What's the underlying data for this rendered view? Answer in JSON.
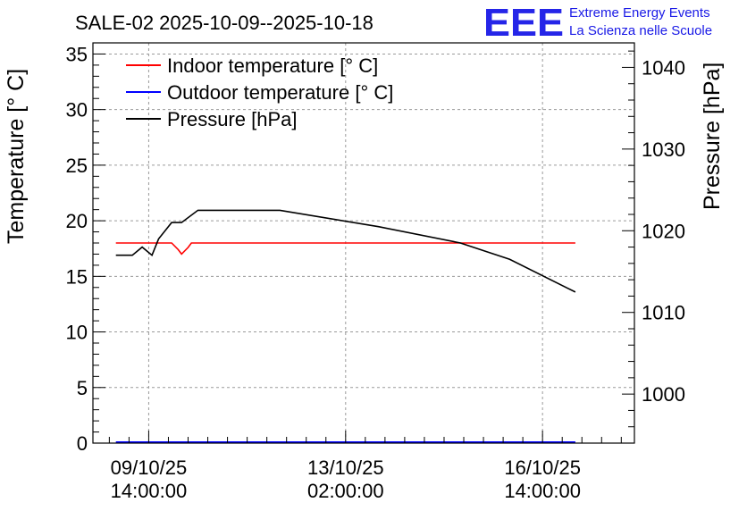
{
  "title": "SALE-02 2025-10-09--2025-10-18",
  "logo": {
    "letters": "EEE",
    "line1": "Extreme Energy Events",
    "line2": "La Scienza nelle Scuole",
    "color": "#1a1ae6"
  },
  "chart_data": {
    "type": "line",
    "title": "SALE-02 2025-10-09--2025-10-18",
    "xlabel": "",
    "ylabel": "Temperature [° C]",
    "y2label": "Pressure [hPa]",
    "ylim": [
      0,
      36
    ],
    "y2lim": [
      994,
      1043
    ],
    "xlim_hours": [
      -17,
      148
    ],
    "x_unit": "hours since 09/10/25 14:00:00",
    "y_ticks": [
      "0",
      "5",
      "10",
      "15",
      "20",
      "25",
      "30",
      "35"
    ],
    "y2_ticks": [
      "1000",
      "1010",
      "1020",
      "1030",
      "1040"
    ],
    "x_ticks": [
      {
        "hours": 0,
        "date": "09/10/25",
        "time": "14:00:00"
      },
      {
        "hours": 60,
        "date": "13/10/25",
        "time": "02:00:00"
      },
      {
        "hours": 120,
        "date": "16/10/25",
        "time": "14:00:00"
      }
    ],
    "grid": true,
    "legend_position": "top-left",
    "series": [
      {
        "name": "Indoor temperature [° C]",
        "color": "#ff0000",
        "axis": "left",
        "x": [
          -10,
          7,
          9,
          10,
          12,
          13,
          130
        ],
        "y": [
          18.0,
          18.0,
          17.4,
          17.0,
          17.6,
          18.0,
          18.0
        ]
      },
      {
        "name": "Outdoor temperature [° C]",
        "color": "#0000ff",
        "axis": "left",
        "x": [
          -10,
          130
        ],
        "y": [
          0.1,
          0.1
        ]
      },
      {
        "name": "Pressure [hPa]",
        "color": "#000000",
        "axis": "right",
        "x": [
          -10,
          -5,
          -2,
          1,
          3,
          7,
          10,
          15,
          40,
          70,
          95,
          110,
          130
        ],
        "y": [
          1017,
          1017,
          1018,
          1017,
          1019,
          1021,
          1021,
          1022.5,
          1022.5,
          1020.5,
          1018.5,
          1016.5,
          1012.5
        ]
      }
    ]
  }
}
